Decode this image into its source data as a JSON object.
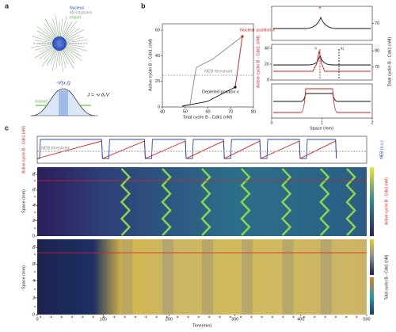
{
  "panel_a": {
    "label": "a",
    "legend": [
      "Nucleus",
      "Microtubules",
      "Import"
    ],
    "potential": "-V(x,t)",
    "import": "Import",
    "flux": "J = -v ∂ₓV"
  },
  "panel_b": {
    "label": "b",
    "left": {
      "xlabel": "Total cyclin B - Cdk1 (nM)",
      "ylabel": "Active cyclin B - Cdk1 (nM)",
      "xlim": [
        40,
        80
      ],
      "xticks": [
        40,
        50,
        60,
        70,
        80
      ],
      "ylim": [
        0,
        65
      ],
      "yticks": [
        0,
        20,
        40,
        60
      ],
      "nuclear": "Nuclear position x",
      "threshold": "NEB threshold",
      "depleted": "Depleted position x"
    },
    "right": {
      "xlabel": "Space (mm)",
      "xlim": [
        0,
        2
      ],
      "xticks": [
        0,
        1,
        2
      ],
      "ylabel_left": "Active cyclin B - Cdk1 (nM)",
      "ylabel_right": "Total cyclin B - Cdk1 (nM)",
      "top_ylim": [
        60,
        80
      ],
      "top_y2ticks": [
        70
      ],
      "mid_ylim": [
        0,
        45
      ],
      "mid_yticks": [
        0,
        20,
        40
      ],
      "mid_y2lim": [
        62,
        84
      ],
      "mid_y2ticks": [
        70,
        80
      ],
      "marker": "x",
      "marker_1": "x₁"
    }
  },
  "panel_c": {
    "label": "c",
    "xlabel": "Time(min)",
    "xlim": [
      0,
      500
    ],
    "xticks": [
      0,
      100,
      200,
      300,
      400,
      500
    ],
    "trace": {
      "ylabel_left": "Active cyclin B - Cdk1 (nM)",
      "ylabel_right": "NEB (a.u.)",
      "threshold": "NEB threshold"
    },
    "heat1": {
      "ylabel": "Space (mm)",
      "ylim": [
        0,
        9
      ],
      "yticks": [
        0,
        2,
        4,
        6,
        8
      ],
      "cbar_label": "Active cyclin B - Cdk1 (nM)"
    },
    "heat2": {
      "ylabel": "Space (mm)",
      "ylim": [
        0,
        9
      ],
      "yticks": [
        0,
        2,
        4,
        6,
        8
      ],
      "cbar_label": "Total cyclin B - Cdk1 (nM)"
    }
  }
}
